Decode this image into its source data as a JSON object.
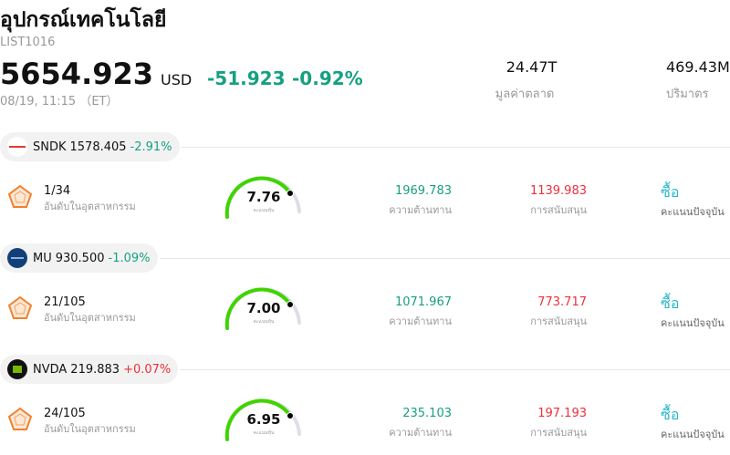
{
  "header": {
    "title": "อุปกรณ์เทคโนโลยี",
    "code": "LIST1016",
    "price": "5654.923",
    "currency": "USD",
    "change": "-51.923",
    "change_percent": "-0.92%",
    "time": "08/19, 11:15 （ET）",
    "stats": [
      {
        "value": "24.47T",
        "label": "มูลค่าตลาด"
      },
      {
        "value": "469.43M",
        "label": "ปริมาตร"
      }
    ]
  },
  "stocks": [
    {
      "ticker": "SNDK",
      "price": "1578.405",
      "change": "-2.91%",
      "rank": "1/34",
      "rank_label": "อันดับในอุตสาหกรรม",
      "score": "7.76",
      "score_label": "คะแนนหุ้น",
      "resistance": "1969.783",
      "resistance_label": "ความต้านทาน",
      "support": "1139.983",
      "support_label": "การสนับสนุน",
      "signal": "ซื้อ",
      "signal_label": "คะแนนปัจจุบัน"
    },
    {
      "ticker": "MU",
      "price": "930.500",
      "change": "-1.09%",
      "rank": "21/105",
      "rank_label": "อันดับในอุตสาหกรรม",
      "score": "7.00",
      "score_label": "คะแนนหุ้น",
      "resistance": "1071.967",
      "resistance_label": "ความต้านทาน",
      "support": "773.717",
      "support_label": "การสนับสนุน",
      "signal": "ซื้อ",
      "signal_label": "คะแนนปัจจุบัน"
    },
    {
      "ticker": "NVDA",
      "price": "219.883",
      "change": "+0.07%",
      "rank": "24/105",
      "rank_label": "อันดับในอุตสาหกรรม",
      "score": "6.95",
      "score_label": "คะแนนหุ้น",
      "resistance": "235.103",
      "resistance_label": "ความต้านทาน",
      "support": "197.193",
      "support_label": "การสนับสนุน",
      "signal": "ซื้อ",
      "signal_label": "คะแนนปัจจุบัน"
    }
  ]
}
